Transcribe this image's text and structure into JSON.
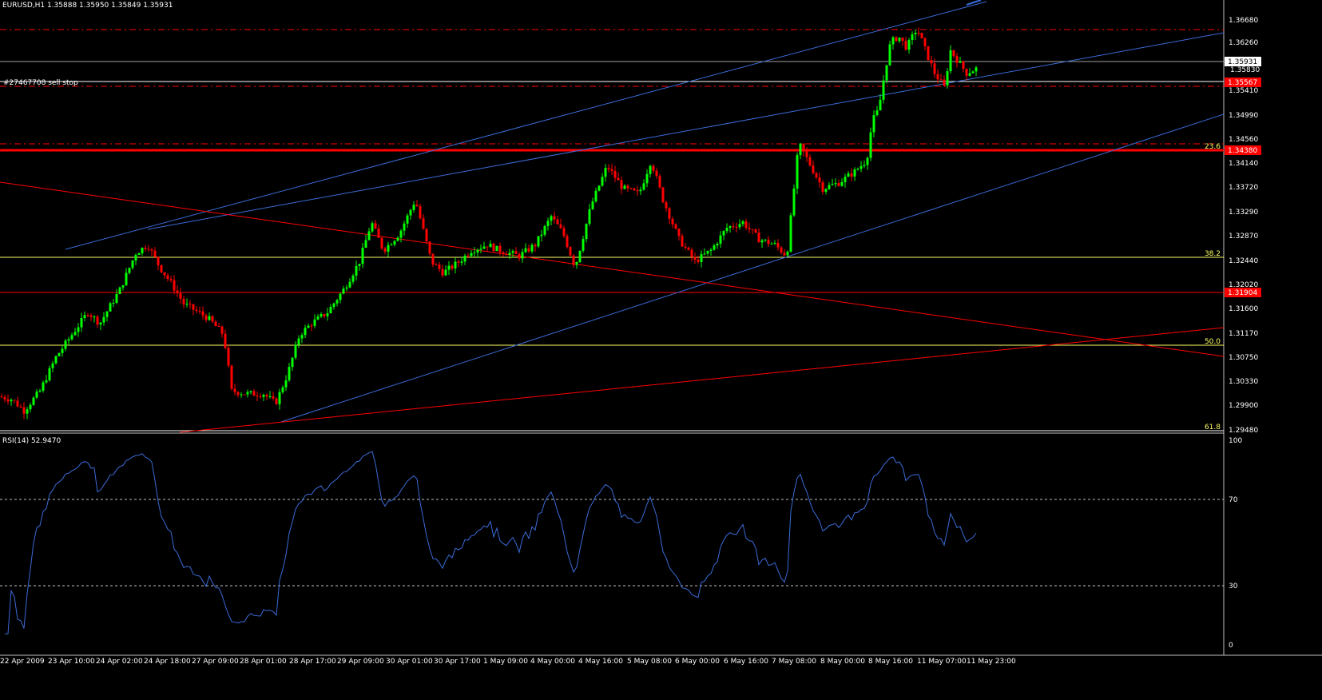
{
  "main_chart": {
    "header": "EURUSD,H1  1.35888 1.35950 1.35849 1.35931",
    "order_label": "#27467708 sell stop",
    "price_axis": [
      "1.36680",
      "1.36260",
      "1.35410",
      "1.34990",
      "1.34560",
      "1.34140",
      "1.33720",
      "1.33290",
      "1.32870",
      "1.32440",
      "1.32020",
      "1.31600",
      "1.31170",
      "1.30750",
      "1.30330",
      "1.29900",
      "1.29480"
    ],
    "current_price": "1.35931",
    "below_current_price": "1.35830",
    "marked_prices": [
      "1.35567",
      "1.34380",
      "1.31904"
    ],
    "fib_levels": [
      "23.6",
      "38.2",
      "50.0",
      "61.8"
    ],
    "colors": {
      "bull": "#00ff00",
      "bear": "#ff0000",
      "trend": "#3b6bd8",
      "fib": "#ffff66",
      "support": "#ff0000"
    }
  },
  "rsi": {
    "header": "RSI(14) 52.9470",
    "axis": [
      "100",
      "70",
      "30",
      "0"
    ]
  },
  "time_axis": [
    "22 Apr 2009",
    "23 Apr 10:00",
    "24 Apr 02:00",
    "24 Apr 18:00",
    "27 Apr 09:00",
    "28 Apr 01:00",
    "28 Apr 17:00",
    "29 Apr 09:00",
    "30 Apr 01:00",
    "30 Apr 17:00",
    "1 May 09:00",
    "4 May 00:00",
    "4 May 16:00",
    "5 May 08:00",
    "6 May 00:00",
    "6 May 16:00",
    "7 May 08:00",
    "8 May 00:00",
    "8 May 16:00",
    "11 May 07:00",
    "11 May 23:00"
  ],
  "chart_data": {
    "type": "candlestick",
    "symbol": "EURUSD",
    "timeframe": "H1",
    "ohlc_last": {
      "open": 1.35888,
      "high": 1.3595,
      "low": 1.35849,
      "close": 1.35931
    },
    "ylim": [
      1.2948,
      1.3695
    ],
    "anchors": [
      [
        0,
        1.301
      ],
      [
        15,
        1.3005
      ],
      [
        30,
        1.2985
      ],
      [
        50,
        1.302
      ],
      [
        70,
        1.308
      ],
      [
        90,
        1.312
      ],
      [
        110,
        1.316
      ],
      [
        125,
        1.314
      ],
      [
        150,
        1.32
      ],
      [
        170,
        1.3265
      ],
      [
        185,
        1.328
      ],
      [
        200,
        1.324
      ],
      [
        215,
        1.321
      ],
      [
        230,
        1.3175
      ],
      [
        260,
        1.315
      ],
      [
        280,
        1.312
      ],
      [
        290,
        1.302
      ],
      [
        310,
        1.3015
      ],
      [
        330,
        1.3015
      ],
      [
        345,
        1.2998
      ],
      [
        360,
        1.305
      ],
      [
        375,
        1.312
      ],
      [
        390,
        1.314
      ],
      [
        410,
        1.316
      ],
      [
        430,
        1.32
      ],
      [
        450,
        1.325
      ],
      [
        465,
        1.332
      ],
      [
        480,
        1.327
      ],
      [
        500,
        1.33
      ],
      [
        520,
        1.336
      ],
      [
        540,
        1.325
      ],
      [
        555,
        1.323
      ],
      [
        575,
        1.325
      ],
      [
        590,
        1.327
      ],
      [
        610,
        1.328
      ],
      [
        625,
        1.327
      ],
      [
        650,
        1.326
      ],
      [
        670,
        1.328
      ],
      [
        690,
        1.333
      ],
      [
        705,
        1.33
      ],
      [
        720,
        1.324
      ],
      [
        740,
        1.335
      ],
      [
        760,
        1.342
      ],
      [
        780,
        1.338
      ],
      [
        800,
        1.337
      ],
      [
        815,
        1.343
      ],
      [
        830,
        1.336
      ],
      [
        850,
        1.329
      ],
      [
        870,
        1.325
      ],
      [
        890,
        1.327
      ],
      [
        910,
        1.331
      ],
      [
        930,
        1.332
      ],
      [
        950,
        1.329
      ],
      [
        970,
        1.328
      ],
      [
        985,
        1.326
      ],
      [
        1000,
        1.346
      ],
      [
        1015,
        1.342
      ],
      [
        1030,
        1.338
      ],
      [
        1050,
        1.339
      ],
      [
        1070,
        1.341
      ],
      [
        1085,
        1.343
      ],
      [
        1092,
        1.35
      ],
      [
        1100,
        1.352
      ],
      [
        1108,
        1.359
      ],
      [
        1115,
        1.364
      ],
      [
        1125,
        1.365
      ],
      [
        1135,
        1.363
      ],
      [
        1148,
        1.3665
      ],
      [
        1160,
        1.362
      ],
      [
        1170,
        1.3585
      ],
      [
        1182,
        1.356
      ],
      [
        1190,
        1.3625
      ],
      [
        1200,
        1.3605
      ],
      [
        1210,
        1.3585
      ],
      [
        1222,
        1.3593
      ]
    ],
    "rsi_period": 14,
    "rsi_last": 52.947,
    "rsi_levels": [
      70,
      30
    ]
  }
}
